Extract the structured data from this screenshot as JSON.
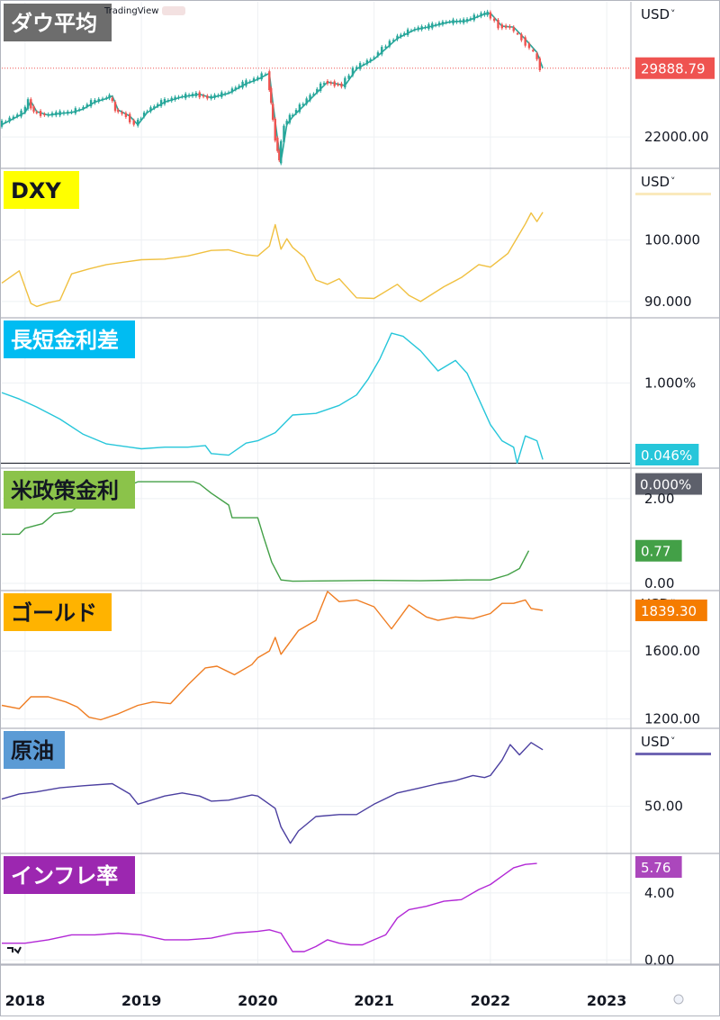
{
  "watermark": "TradingView",
  "chart_data": [
    {
      "type": "line",
      "title": "ダウ平均",
      "title_bg": "#6d6d6d",
      "title_color": "#ffffff",
      "currency": "USD",
      "currency_caret": "˅",
      "axis_labels": [
        22000
      ],
      "axis_label_text": [
        "22000.00"
      ],
      "ylim": [
        18500,
        37500
      ],
      "last_value_label": "29888.79",
      "last_value_color": "#ef5350",
      "line_color": "#26a69a",
      "x": [
        2017.8,
        2018.0,
        2018.05,
        2018.1,
        2018.2,
        2018.3,
        2018.4,
        2018.5,
        2018.6,
        2018.7,
        2018.75,
        2018.8,
        2018.9,
        2018.97,
        2019.05,
        2019.2,
        2019.35,
        2019.5,
        2019.6,
        2019.75,
        2019.9,
        2020.0,
        2020.1,
        2020.13,
        2020.17,
        2020.2,
        2020.25,
        2020.3,
        2020.45,
        2020.6,
        2020.75,
        2020.85,
        2021.0,
        2021.2,
        2021.35,
        2021.5,
        2021.65,
        2021.8,
        2021.95,
        2022.0,
        2022.1,
        2022.2,
        2022.3,
        2022.4,
        2022.45
      ],
      "values": [
        23400,
        24800,
        26100,
        24900,
        24500,
        24700,
        24800,
        25200,
        26000,
        26400,
        26700,
        25100,
        24400,
        23400,
        24800,
        26000,
        26600,
        26900,
        26500,
        27000,
        28100,
        28600,
        29300,
        25900,
        21800,
        19200,
        23400,
        24300,
        26300,
        28300,
        27900,
        29800,
        30900,
        33300,
        34300,
        34700,
        35200,
        35300,
        36100,
        36200,
        34700,
        34600,
        33200,
        31700,
        29888
      ]
    },
    {
      "type": "line",
      "title": "DXY",
      "title_bg": "#ffff00",
      "title_color": "#131722",
      "currency": "USD",
      "currency_caret": "˅",
      "axis_labels": [
        100,
        90
      ],
      "axis_label_text": [
        "100.000",
        "90.000"
      ],
      "ylim": [
        87.5,
        111.5
      ],
      "line_color": "#f0c040",
      "x": [
        2017.8,
        2017.95,
        2018.05,
        2018.1,
        2018.2,
        2018.3,
        2018.4,
        2018.55,
        2018.7,
        2018.85,
        2019.0,
        2019.2,
        2019.4,
        2019.6,
        2019.75,
        2019.9,
        2020.0,
        2020.1,
        2020.15,
        2020.2,
        2020.25,
        2020.3,
        2020.4,
        2020.5,
        2020.6,
        2020.7,
        2020.85,
        2021.0,
        2021.2,
        2021.3,
        2021.4,
        2021.6,
        2021.75,
        2021.9,
        2022.0,
        2022.15,
        2022.3,
        2022.35,
        2022.4,
        2022.45
      ],
      "values": [
        93.0,
        95.0,
        89.7,
        89.2,
        89.8,
        90.2,
        94.5,
        95.3,
        96.0,
        96.4,
        96.8,
        96.9,
        97.4,
        98.3,
        98.4,
        97.6,
        97.4,
        99.0,
        102.5,
        98.5,
        100.2,
        98.8,
        97.2,
        93.5,
        92.8,
        93.7,
        90.6,
        90.5,
        92.8,
        91.0,
        90.0,
        92.4,
        93.9,
        96.0,
        95.6,
        97.8,
        102.6,
        104.4,
        103.0,
        104.5
      ]
    },
    {
      "type": "line",
      "title": "長短金利差",
      "title_bg": "#00bcf2",
      "title_color": "#ffffff",
      "axis_labels": [
        1.0
      ],
      "axis_label_text": [
        "1.000%"
      ],
      "ylim": [
        -0.05,
        1.8
      ],
      "last_value_label": "0.046%",
      "last_value_color": "#26c6da",
      "zero_label": "0.000%",
      "zero_color": "#5d606b",
      "line_color": "#26c6da",
      "x": [
        2017.8,
        2017.95,
        2018.1,
        2018.3,
        2018.5,
        2018.7,
        2018.9,
        2019.0,
        2019.2,
        2019.4,
        2019.55,
        2019.6,
        2019.75,
        2019.9,
        2020.0,
        2020.15,
        2020.3,
        2020.5,
        2020.7,
        2020.85,
        2020.95,
        2021.05,
        2021.15,
        2021.25,
        2021.4,
        2021.55,
        2021.7,
        2021.8,
        2021.9,
        2022.0,
        2022.1,
        2022.2,
        2022.23,
        2022.3,
        2022.4,
        2022.45
      ],
      "values": [
        0.88,
        0.8,
        0.7,
        0.55,
        0.36,
        0.24,
        0.2,
        0.18,
        0.2,
        0.2,
        0.22,
        0.12,
        0.1,
        0.25,
        0.28,
        0.38,
        0.6,
        0.62,
        0.72,
        0.85,
        1.05,
        1.3,
        1.62,
        1.58,
        1.4,
        1.15,
        1.28,
        1.12,
        0.8,
        0.48,
        0.28,
        0.2,
        0.0,
        0.34,
        0.28,
        0.046
      ]
    },
    {
      "type": "line",
      "title": "米政策金利",
      "title_bg": "#8bc34a",
      "title_color": "#131722",
      "axis_labels": [
        2.0,
        0.0
      ],
      "axis_label_text": [
        "2.00",
        "0.00"
      ],
      "ylim": [
        -0.15,
        2.7
      ],
      "last_value_label": "0.77",
      "last_value_color": "#43a047",
      "line_color": "#43a047",
      "x": [
        2017.8,
        2017.95,
        2018.0,
        2018.15,
        2018.25,
        2018.4,
        2018.5,
        2018.65,
        2018.75,
        2018.97,
        2019.45,
        2019.5,
        2019.6,
        2019.75,
        2019.78,
        2020.0,
        2020.05,
        2020.12,
        2020.2,
        2020.3,
        2021.0,
        2021.4,
        2021.8,
        2022.0,
        2022.15,
        2022.25,
        2022.33
      ],
      "values": [
        1.16,
        1.16,
        1.3,
        1.41,
        1.65,
        1.7,
        1.91,
        1.92,
        2.15,
        2.4,
        2.4,
        2.35,
        2.13,
        1.85,
        1.55,
        1.55,
        1.1,
        0.5,
        0.08,
        0.05,
        0.07,
        0.06,
        0.08,
        0.08,
        0.2,
        0.35,
        0.77
      ]
    },
    {
      "type": "line",
      "title": "ゴールド",
      "title_bg": "#ffb300",
      "title_color": "#131722",
      "currency": "USD",
      "currency_caret": "˅",
      "axis_labels": [
        1600,
        1200
      ],
      "axis_label_text": [
        "1600.00",
        "1200.00"
      ],
      "ylim": [
        1150,
        1950
      ],
      "last_value_label": "1839.30",
      "last_value_color": "#f57c00",
      "line_color": "#ef7d22",
      "x": [
        2017.8,
        2017.95,
        2018.05,
        2018.2,
        2018.35,
        2018.45,
        2018.55,
        2018.65,
        2018.8,
        2018.97,
        2019.1,
        2019.25,
        2019.4,
        2019.55,
        2019.65,
        2019.8,
        2019.95,
        2020.0,
        2020.1,
        2020.15,
        2020.2,
        2020.35,
        2020.5,
        2020.6,
        2020.7,
        2020.85,
        2021.0,
        2021.15,
        2021.3,
        2021.45,
        2021.55,
        2021.7,
        2021.85,
        2022.0,
        2022.1,
        2022.2,
        2022.3,
        2022.35,
        2022.45
      ],
      "values": [
        1280,
        1260,
        1330,
        1330,
        1300,
        1270,
        1210,
        1195,
        1230,
        1280,
        1300,
        1290,
        1400,
        1500,
        1510,
        1460,
        1520,
        1560,
        1600,
        1680,
        1580,
        1720,
        1780,
        1950,
        1890,
        1900,
        1860,
        1730,
        1870,
        1800,
        1780,
        1800,
        1790,
        1820,
        1880,
        1880,
        1900,
        1850,
        1839
      ]
    },
    {
      "type": "line",
      "title": "原油",
      "title_bg": "#5b9bd5",
      "title_color": "#131722",
      "currency": "USD",
      "currency_caret": "˅",
      "axis_labels": [
        50
      ],
      "axis_label_text": [
        "50.00"
      ],
      "ylim": [
        5,
        125
      ],
      "line_color": "#4b3fa0",
      "x": [
        2017.8,
        2017.95,
        2018.1,
        2018.3,
        2018.5,
        2018.75,
        2018.9,
        2018.97,
        2019.2,
        2019.35,
        2019.5,
        2019.6,
        2019.75,
        2019.95,
        2020.0,
        2020.1,
        2020.15,
        2020.2,
        2020.25,
        2020.28,
        2020.35,
        2020.5,
        2020.7,
        2020.85,
        2021.0,
        2021.2,
        2021.4,
        2021.55,
        2021.7,
        2021.85,
        2021.95,
        2022.0,
        2022.1,
        2022.17,
        2022.25,
        2022.35,
        2022.45
      ],
      "values": [
        57,
        62,
        64,
        68,
        70,
        72,
        62,
        52,
        60,
        63,
        60,
        55,
        56,
        61,
        60,
        52,
        48,
        30,
        20,
        14,
        26,
        40,
        42,
        42,
        52,
        63,
        68,
        72,
        75,
        80,
        78,
        80,
        95,
        110,
        100,
        112,
        105
      ]
    },
    {
      "type": "line",
      "title": "インフレ率",
      "title_bg": "#9c27b0",
      "title_color": "#ffffff",
      "axis_labels": [
        4.0,
        0.0
      ],
      "axis_label_text": [
        "4.00",
        "0.00"
      ],
      "ylim": [
        -0.2,
        6.3
      ],
      "last_value_label": "5.76",
      "last_value_color": "#ab47bc",
      "line_color": "#b228d6",
      "x": [
        2017.8,
        2018.0,
        2018.2,
        2018.4,
        2018.6,
        2018.8,
        2019.0,
        2019.2,
        2019.4,
        2019.6,
        2019.8,
        2020.0,
        2020.1,
        2020.2,
        2020.3,
        2020.4,
        2020.5,
        2020.6,
        2020.7,
        2020.8,
        2020.9,
        2021.0,
        2021.1,
        2021.2,
        2021.3,
        2021.45,
        2021.6,
        2021.75,
        2021.9,
        2022.0,
        2022.1,
        2022.2,
        2022.3,
        2022.4
      ],
      "values": [
        1.0,
        1.0,
        1.2,
        1.5,
        1.5,
        1.6,
        1.5,
        1.2,
        1.2,
        1.3,
        1.6,
        1.7,
        1.8,
        1.6,
        0.5,
        0.5,
        0.8,
        1.2,
        1.0,
        0.9,
        0.9,
        1.2,
        1.5,
        2.5,
        3.0,
        3.2,
        3.5,
        3.6,
        4.2,
        4.5,
        5.0,
        5.5,
        5.7,
        5.76
      ]
    }
  ],
  "time_axis": {
    "labels": [
      "2018",
      "2019",
      "2020",
      "2021",
      "2022",
      "2023"
    ],
    "values": [
      2018,
      2019,
      2020,
      2021,
      2022,
      2023
    ],
    "xlim": [
      2017.8,
      2023.2
    ]
  },
  "icons": [
    "logo-icon",
    "settings-icon",
    "auto-scale-icon"
  ]
}
